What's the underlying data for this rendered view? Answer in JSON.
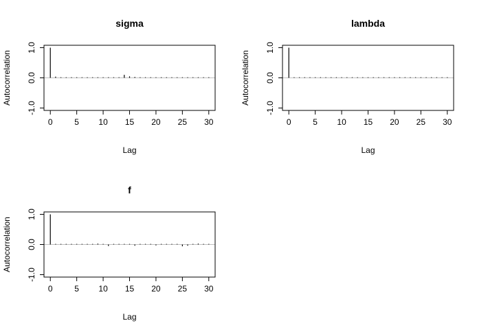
{
  "chart_data": [
    {
      "type": "bar",
      "title": "sigma",
      "xlabel": "Lag",
      "ylabel": "Autocorrelation",
      "xlim": [
        0,
        30
      ],
      "ylim": [
        -1,
        1
      ],
      "xticks": [
        0,
        5,
        10,
        15,
        20,
        25,
        30
      ],
      "yticks": [
        -1.0,
        0.0,
        1.0
      ],
      "ytick_labels": [
        "-1.0",
        "0.0",
        "1.0"
      ],
      "x": [
        0,
        1,
        2,
        3,
        4,
        5,
        6,
        7,
        8,
        9,
        10,
        11,
        12,
        13,
        14,
        15,
        16,
        17,
        18,
        19,
        20,
        21,
        22,
        23,
        24,
        25,
        26,
        27,
        28,
        29,
        30
      ],
      "values": [
        1.0,
        0.04,
        -0.02,
        0.01,
        0.01,
        0.01,
        0.0,
        0.01,
        0.01,
        0.01,
        0.0,
        0.01,
        0.0,
        0.02,
        0.1,
        0.05,
        0.03,
        0.01,
        0.02,
        0.0,
        0.02,
        0.01,
        0.0,
        -0.02,
        0.01,
        0.01,
        0.0,
        0.01,
        0.0,
        0.01,
        0.0
      ]
    },
    {
      "type": "bar",
      "title": "lambda",
      "xlabel": "Lag",
      "ylabel": "Autocorrelation",
      "xlim": [
        0,
        30
      ],
      "ylim": [
        -1,
        1
      ],
      "xticks": [
        0,
        5,
        10,
        15,
        20,
        25,
        30
      ],
      "yticks": [
        -1.0,
        0.0,
        1.0
      ],
      "ytick_labels": [
        "-1.0",
        "0.0",
        "1.0"
      ],
      "x": [
        0,
        1,
        2,
        3,
        4,
        5,
        6,
        7,
        8,
        9,
        10,
        11,
        12,
        13,
        14,
        15,
        16,
        17,
        18,
        19,
        20,
        21,
        22,
        23,
        24,
        25,
        26,
        27,
        28,
        29,
        30
      ],
      "values": [
        1.0,
        0.02,
        0.01,
        0.02,
        0.01,
        0.01,
        0.0,
        0.01,
        -0.01,
        0.01,
        0.0,
        0.01,
        -0.01,
        0.01,
        0.02,
        0.0,
        0.01,
        0.0,
        0.01,
        -0.02,
        0.0,
        0.01,
        0.0,
        0.01,
        0.0,
        0.01,
        0.02,
        0.0,
        0.01,
        0.0,
        0.0
      ]
    },
    {
      "type": "bar",
      "title": "f",
      "xlabel": "Lag",
      "ylabel": "Autocorrelation",
      "xlim": [
        0,
        30
      ],
      "ylim": [
        -1,
        1
      ],
      "xticks": [
        0,
        5,
        10,
        15,
        20,
        25,
        30
      ],
      "yticks": [
        -1.0,
        0.0,
        1.0
      ],
      "ytick_labels": [
        "-1.0",
        "0.0",
        "1.0"
      ],
      "x": [
        0,
        1,
        2,
        3,
        4,
        5,
        6,
        7,
        8,
        9,
        10,
        11,
        12,
        13,
        14,
        15,
        16,
        17,
        18,
        19,
        20,
        21,
        22,
        23,
        24,
        25,
        26,
        27,
        28,
        29,
        30
      ],
      "values": [
        1.0,
        0.02,
        0.01,
        -0.01,
        0.0,
        0.01,
        0.0,
        0.02,
        0.01,
        0.03,
        0.02,
        -0.05,
        0.0,
        0.02,
        0.01,
        0.02,
        -0.04,
        0.01,
        0.02,
        -0.02,
        -0.03,
        0.02,
        0.0,
        0.01,
        0.0,
        -0.06,
        -0.04,
        -0.02,
        0.03,
        0.0,
        -0.01
      ]
    }
  ]
}
